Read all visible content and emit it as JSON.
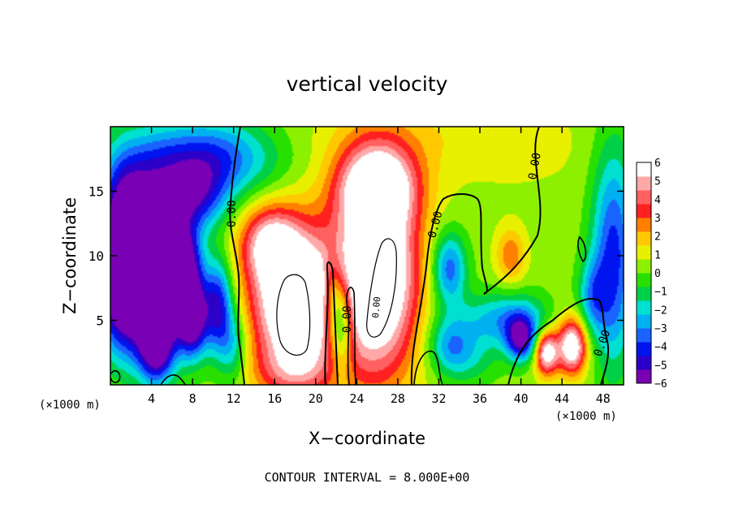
{
  "chart_data": {
    "type": "heatmap",
    "title": "vertical velocity",
    "xlabel": "X−coordinate",
    "ylabel": "Z−coordinate",
    "x_unit_left": "(×1000 m)",
    "x_unit_right": "(×1000 m)",
    "footer": "CONTOUR INTERVAL = 8.000E+00",
    "xlim": [
      0,
      50
    ],
    "ylim": [
      0,
      20
    ],
    "x_ticks": [
      4,
      8,
      12,
      16,
      20,
      24,
      28,
      32,
      36,
      40,
      44,
      48
    ],
    "y_ticks": [
      5,
      10,
      15
    ],
    "colorbar": {
      "min": -6,
      "max": 6,
      "ticks": [
        6,
        5,
        4,
        3,
        2,
        1,
        0,
        -1,
        -2,
        -3,
        -4,
        -5,
        -6
      ],
      "tick_labels": [
        "6",
        "5",
        "4",
        "3",
        "2",
        "1",
        "0",
        "−1",
        "−2",
        "−3",
        "−4",
        "−5",
        "−6"
      ],
      "colors": [
        "#7a00b5",
        "#2c00c8",
        "#0014f0",
        "#1a63ff",
        "#00b0f0",
        "#00e0d0",
        "#00d048",
        "#28e000",
        "#8cf000",
        "#e8f000",
        "#ffc800",
        "#ff8000",
        "#ff2020",
        "#ff6060",
        "#ffa8a8",
        "#ffffff"
      ]
    },
    "contour_labels": [
      "0.00",
      "0.00",
      "0.00",
      "0.00",
      "0.00",
      "0.00"
    ],
    "features": [
      {
        "x": 9.5,
        "z": 17.5,
        "sx": 4.5,
        "sz": 2.2,
        "v": -4.5
      },
      {
        "x": 8.5,
        "z": 14.5,
        "sx": 2.0,
        "sz": 1.8,
        "v": -3.5
      },
      {
        "x": 3.5,
        "z": 14.5,
        "sx": 2.5,
        "sz": 3.0,
        "v": -4.0
      },
      {
        "x": 3.5,
        "z": 7.5,
        "sx": 2.8,
        "sz": 3.5,
        "v": -7.0
      },
      {
        "x": 1.0,
        "z": 10.0,
        "sx": 1.5,
        "sz": 4.5,
        "v": -6.0
      },
      {
        "x": 4.5,
        "z": 3.0,
        "sx": 1.2,
        "sz": 2.0,
        "v": -6.0
      },
      {
        "x": 7.0,
        "z": 9.0,
        "sx": 1.2,
        "sz": 2.5,
        "v": -6.5
      },
      {
        "x": 8.0,
        "z": 5.0,
        "sx": 1.0,
        "sz": 2.0,
        "v": -6.0
      },
      {
        "x": 10.5,
        "z": 6.0,
        "sx": 1.0,
        "sz": 2.5,
        "v": -5.0
      },
      {
        "x": 12.0,
        "z": 3.0,
        "sx": 1.0,
        "sz": 2.0,
        "v": -2.5
      },
      {
        "x": 18.0,
        "z": 6.5,
        "sx": 3.0,
        "sz": 4.0,
        "v": 8.0
      },
      {
        "x": 15.5,
        "z": 11.0,
        "sx": 2.0,
        "sz": 2.0,
        "v": 4.0
      },
      {
        "x": 22.5,
        "z": 5.0,
        "sx": 0.8,
        "sz": 2.5,
        "v": -5.0
      },
      {
        "x": 21.5,
        "z": 7.0,
        "sx": 0.6,
        "sz": 2.0,
        "v": -2.5
      },
      {
        "x": 26.0,
        "z": 8.5,
        "sx": 2.8,
        "sz": 5.5,
        "v": 8.0
      },
      {
        "x": 26.0,
        "z": 15.5,
        "sx": 2.8,
        "sz": 2.2,
        "v": 5.0
      },
      {
        "x": 33.0,
        "z": 9.0,
        "sx": 1.2,
        "sz": 2.0,
        "v": -4.0
      },
      {
        "x": 33.0,
        "z": 3.0,
        "sx": 1.5,
        "sz": 1.5,
        "v": -2.5
      },
      {
        "x": 39.0,
        "z": 10.0,
        "sx": 1.0,
        "sz": 1.5,
        "v": 2.5
      },
      {
        "x": 39.5,
        "z": 5.0,
        "sx": 4.0,
        "sz": 1.5,
        "v": -3.5
      },
      {
        "x": 35.0,
        "z": 2.0,
        "sx": 2.0,
        "sz": 1.5,
        "v": -1.5
      },
      {
        "x": 40.0,
        "z": 3.5,
        "sx": 1.0,
        "sz": 1.2,
        "v": -5.0
      },
      {
        "x": 42.5,
        "z": 2.5,
        "sx": 0.8,
        "sz": 1.2,
        "v": 6.0
      },
      {
        "x": 45.0,
        "z": 3.0,
        "sx": 1.0,
        "sz": 1.5,
        "v": 6.5
      },
      {
        "x": 43.5,
        "z": 5.0,
        "sx": 2.0,
        "sz": 1.5,
        "v": 1.5
      },
      {
        "x": 49.0,
        "z": 10.0,
        "sx": 1.5,
        "sz": 6.0,
        "v": -4.5
      },
      {
        "x": 47.0,
        "z": 7.0,
        "sx": 1.0,
        "sz": 2.0,
        "v": -2.5
      },
      {
        "x": 29.5,
        "z": 19.5,
        "sx": 8.0,
        "sz": 2.0,
        "v": 0.8
      },
      {
        "x": 40.0,
        "z": 18.0,
        "sx": 6.0,
        "sz": 3.0,
        "v": 0.4
      },
      {
        "x": 18.0,
        "z": 1.0,
        "sx": 3.0,
        "sz": 1.5,
        "v": 2.0
      }
    ]
  }
}
